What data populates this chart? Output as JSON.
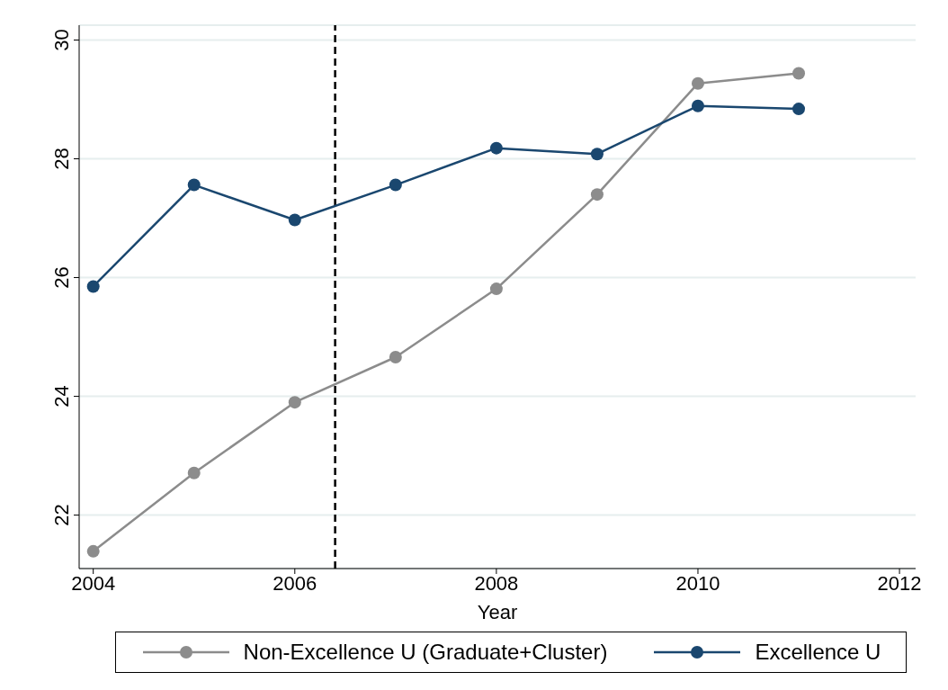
{
  "chart_data": {
    "type": "line",
    "xlabel": "Year",
    "x": [
      2004,
      2005,
      2006,
      2007,
      2008,
      2009,
      2010,
      2011
    ],
    "series": [
      {
        "name": "Non-Excellence U (Graduate+Cluster)",
        "color": "#8c8c8c",
        "values": [
          21.39,
          22.71,
          23.9,
          24.66,
          25.81,
          27.4,
          29.27,
          29.44
        ]
      },
      {
        "name": "Excellence U",
        "color": "#1a476f",
        "values": [
          25.85,
          27.56,
          26.97,
          27.56,
          28.18,
          28.08,
          28.89,
          28.84
        ]
      }
    ],
    "xlim": [
      2003.86,
      2012.16
    ],
    "xticks": [
      2004,
      2006,
      2008,
      2010,
      2012
    ],
    "ylim": [
      21.1,
      30.25
    ],
    "yticks": [
      22,
      24,
      26,
      28,
      30
    ],
    "ref_lines": [
      {
        "axis": "x",
        "value": 2006.4,
        "color": "#000000",
        "line_style": "dashed"
      }
    ],
    "grid": "y",
    "legend": "bottom",
    "marker": "circle",
    "line_style": "solid"
  }
}
